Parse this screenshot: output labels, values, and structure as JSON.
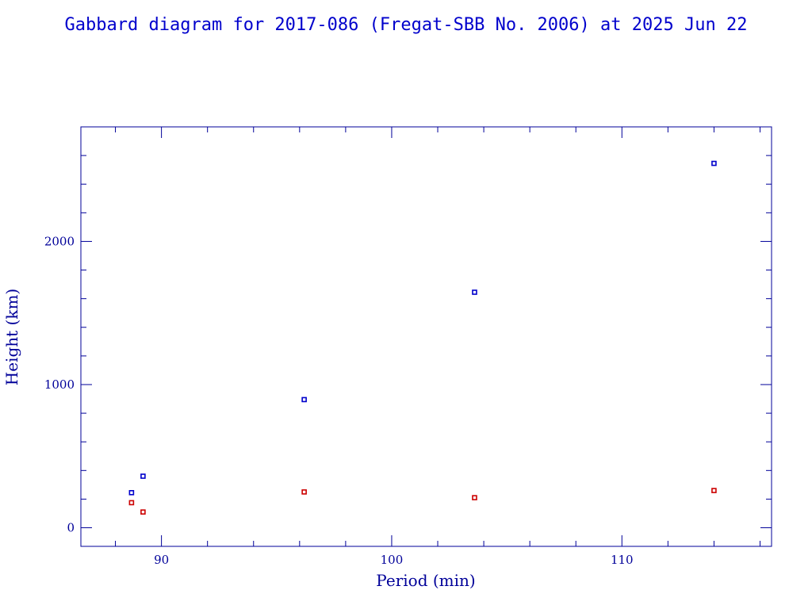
{
  "chart_data": {
    "type": "scatter",
    "title": "Gabbard diagram for 2017-086 (Fregat-SBB No. 2006) at 2025 Jun 22",
    "xlabel": "Period (min)",
    "ylabel": "Height (km)",
    "xlim": [
      86.5,
      116.5
    ],
    "ylim": [
      -130,
      2800
    ],
    "x_ticks": [
      90,
      100,
      110
    ],
    "y_ticks": [
      0,
      1000,
      2000
    ],
    "x_minor_step": 2,
    "y_minor_step": 200,
    "grid": false,
    "series": [
      {
        "color": "#0000cc",
        "points": [
          {
            "x": 88.7,
            "y": 245
          },
          {
            "x": 89.2,
            "y": 360
          },
          {
            "x": 96.2,
            "y": 895
          },
          {
            "x": 103.6,
            "y": 1645
          },
          {
            "x": 114.0,
            "y": 2545
          }
        ]
      },
      {
        "color": "#cc0000",
        "points": [
          {
            "x": 88.7,
            "y": 175
          },
          {
            "x": 89.2,
            "y": 110
          },
          {
            "x": 96.2,
            "y": 250
          },
          {
            "x": 103.6,
            "y": 210
          },
          {
            "x": 114.0,
            "y": 260
          }
        ]
      }
    ]
  }
}
